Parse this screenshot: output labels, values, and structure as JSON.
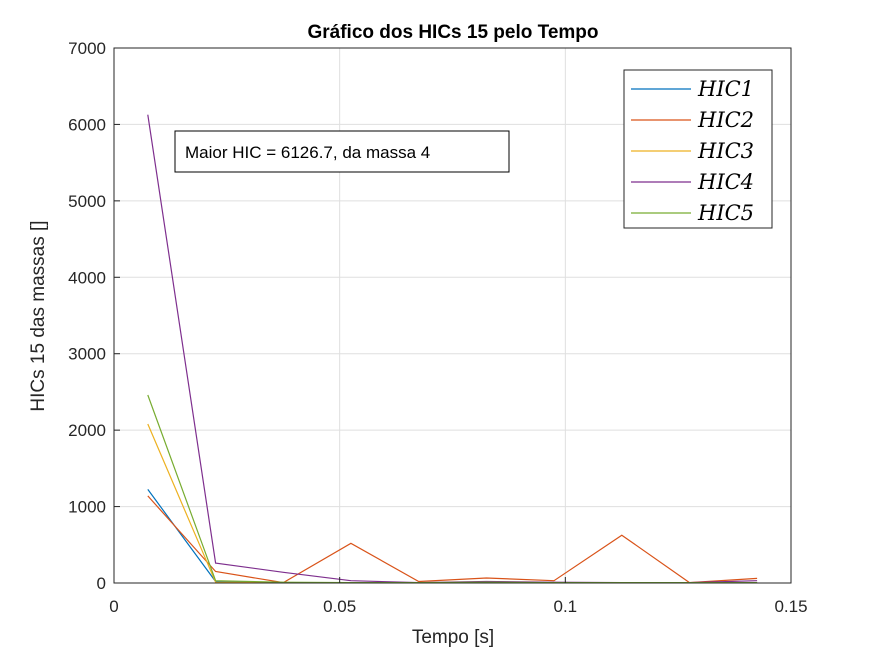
{
  "chart_data": {
    "type": "line",
    "title": "Gráfico dos HICs 15 pelo Tempo",
    "xlabel": "Tempo [s]",
    "ylabel": "HICs 15 das massas []",
    "xlim": [
      0,
      0.15
    ],
    "ylim": [
      0,
      7000
    ],
    "xticks": [
      0,
      0.05,
      0.1,
      0.15
    ],
    "xtick_labels": [
      "0",
      "0.05",
      "0.1",
      "0.15"
    ],
    "yticks": [
      0,
      1000,
      2000,
      3000,
      4000,
      5000,
      6000,
      7000
    ],
    "ytick_labels": [
      "0",
      "1000",
      "2000",
      "3000",
      "4000",
      "5000",
      "6000",
      "7000"
    ],
    "grid": true,
    "legend_position": "top-right",
    "x": [
      0.0075,
      0.0225,
      0.0375,
      0.0525,
      0.0675,
      0.0825,
      0.0975,
      0.1125,
      0.1275,
      0.1425
    ],
    "series": [
      {
        "name": "HIC1",
        "color": "#0072BD",
        "values": [
          1225,
          20,
          5,
          5,
          5,
          5,
          5,
          5,
          5,
          5
        ]
      },
      {
        "name": "HIC2",
        "color": "#D95319",
        "values": [
          1140,
          150,
          5,
          520,
          20,
          65,
          30,
          625,
          5,
          60
        ]
      },
      {
        "name": "HIC3",
        "color": "#EDB120",
        "values": [
          2080,
          10,
          5,
          5,
          5,
          5,
          5,
          5,
          5,
          5
        ]
      },
      {
        "name": "HIC4",
        "color": "#7E2F8E",
        "values": [
          6127,
          260,
          140,
          30,
          5,
          20,
          10,
          5,
          5,
          30
        ]
      },
      {
        "name": "HIC5",
        "color": "#77AC30",
        "values": [
          2460,
          30,
          10,
          5,
          5,
          10,
          5,
          5,
          5,
          5
        ]
      }
    ],
    "annotation": "Maior HIC = 6126.7, da massa 4"
  }
}
